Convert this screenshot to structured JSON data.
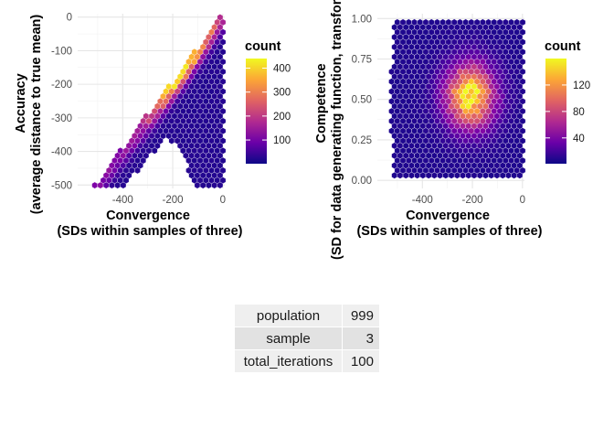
{
  "chart_data": [
    {
      "type": "hexbin",
      "xlabel_line1": "Convergence",
      "xlabel_line2": "(SDs within samples of three)",
      "ylabel_line1": "Accuracy",
      "ylabel_line2": "(average distance to true mean)",
      "xlim": [
        -580,
        8
      ],
      "ylim": [
        -510,
        10
      ],
      "x_ticks": [
        -400,
        -200,
        0
      ],
      "y_ticks": [
        0,
        -100,
        -200,
        -300,
        -400,
        -500
      ],
      "legend": {
        "title": "count",
        "range": [
          1,
          440
        ],
        "ticks": [
          100,
          200,
          300,
          400
        ],
        "placement": "right"
      }
    },
    {
      "type": "hexbin",
      "xlabel_line1": "Convergence",
      "xlabel_line2": "(SDs within samples of three)",
      "ylabel_line1": "Competence",
      "ylabel_line2": "(SD for data generating function, transformed)",
      "xlim": [
        -580,
        8
      ],
      "ylim": [
        -0.05,
        1.03
      ],
      "x_ticks": [
        -400,
        -200,
        0
      ],
      "y_ticks": [
        0.0,
        0.25,
        0.5,
        0.75,
        1.0
      ],
      "y_tick_labels": [
        "0.00",
        "0.25",
        "0.50",
        "0.75",
        "1.00"
      ],
      "legend": {
        "title": "count",
        "range": [
          1,
          160
        ],
        "ticks": [
          40,
          80,
          120
        ],
        "placement": "right"
      }
    }
  ],
  "table": {
    "rows": [
      {
        "name": "population",
        "value": "999"
      },
      {
        "name": "sample",
        "value": "3"
      },
      {
        "name": "total_iterations",
        "value": "100"
      }
    ]
  }
}
